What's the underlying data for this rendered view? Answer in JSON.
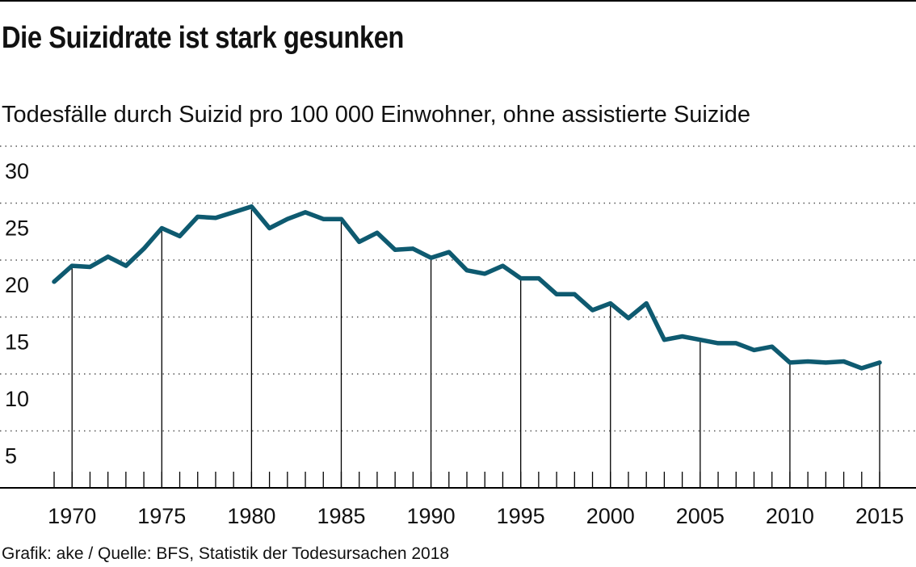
{
  "header": {
    "title": "Die Suizidrate ist stark gesunken",
    "subtitle": "Todesfälle durch Suizid pro 100 000 Einwohner, ohne assistierte Suizide"
  },
  "footer": {
    "source": "Grafik: ake / Quelle: BFS, Statistik der Todesursachen 2018"
  },
  "colors": {
    "line": "#0e5a70",
    "grid": "#555555",
    "axis": "#000000"
  },
  "chart_data": {
    "type": "line",
    "title": "Die Suizidrate ist stark gesunken",
    "subtitle": "Todesfälle durch Suizid pro 100 000 Einwohner, ohne assistierte Suizide",
    "xlabel": "",
    "ylabel": "",
    "xlim": [
      1968.5,
      2016.5
    ],
    "ylim": [
      0,
      30
    ],
    "grid": "horizontal dotted",
    "x_ticks": [
      1970,
      1975,
      1980,
      1985,
      1990,
      1995,
      2000,
      2005,
      2010,
      2015
    ],
    "y_ticks": [
      5,
      10,
      15,
      20,
      25,
      30
    ],
    "x_tick_labels": [
      "1970",
      "1975",
      "1980",
      "1985",
      "1990",
      "1995",
      "2000",
      "2005",
      "2010",
      "2015"
    ],
    "y_tick_labels": [
      "5",
      "10",
      "15",
      "20",
      "25",
      "30"
    ],
    "series": [
      {
        "name": "Suizidrate",
        "x": [
          1969,
          1970,
          1971,
          1972,
          1973,
          1974,
          1975,
          1976,
          1977,
          1978,
          1979,
          1980,
          1981,
          1982,
          1983,
          1984,
          1985,
          1986,
          1987,
          1988,
          1989,
          1990,
          1991,
          1992,
          1993,
          1994,
          1995,
          1996,
          1997,
          1998,
          1999,
          2000,
          2001,
          2002,
          2003,
          2004,
          2005,
          2006,
          2007,
          2008,
          2009,
          2010,
          2011,
          2012,
          2013,
          2014,
          2015
        ],
        "values": [
          18.1,
          19.5,
          19.4,
          20.3,
          19.5,
          21.0,
          22.8,
          22.1,
          23.8,
          23.7,
          24.2,
          24.7,
          22.8,
          23.6,
          24.2,
          23.6,
          23.6,
          21.6,
          22.4,
          20.9,
          21.0,
          20.2,
          20.7,
          19.1,
          18.8,
          19.5,
          18.4,
          18.4,
          17.0,
          17.0,
          15.6,
          16.2,
          14.9,
          16.2,
          13.0,
          13.3,
          13.0,
          12.7,
          12.7,
          12.1,
          12.4,
          11.0,
          11.1,
          11.0,
          11.1,
          10.5,
          11.0
        ]
      }
    ]
  }
}
